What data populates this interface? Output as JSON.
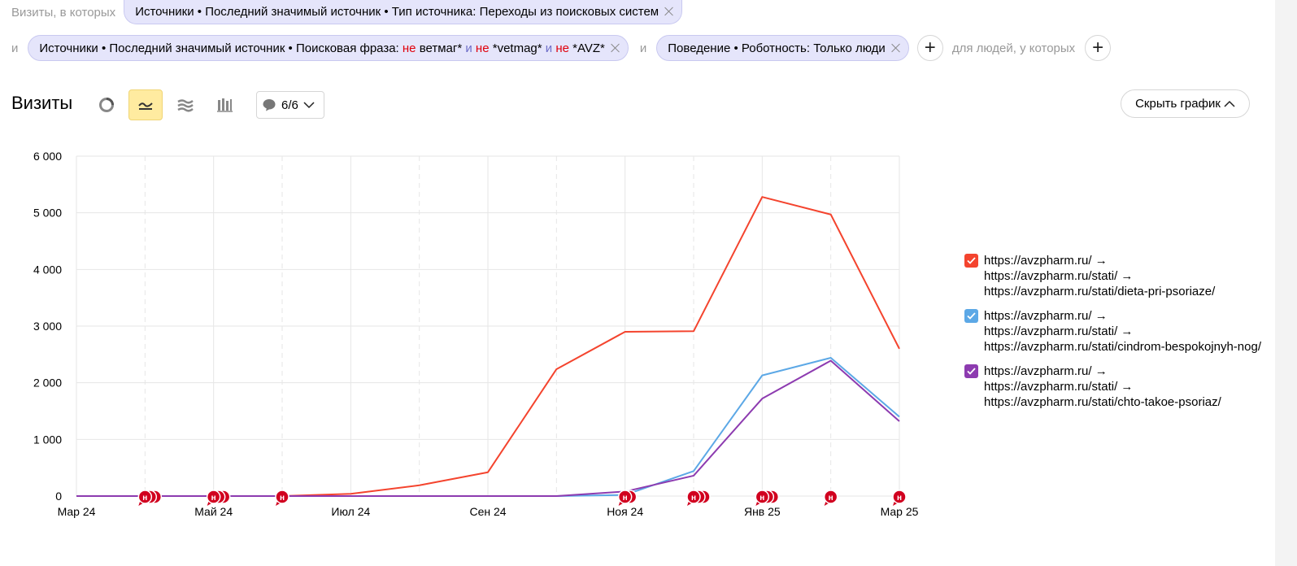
{
  "filters": {
    "row1_prefix": "Визиты, в которых",
    "chip1": "Источники • Последний значимый источник • Тип источника: Переходы из поисковых систем",
    "and": "и",
    "chip2": {
      "prefix": "Источники • Последний значимый источник • Поисковая фраза: ",
      "not1": "не",
      "t1": " ветмаг* ",
      "and1": "и",
      "sp1": " ",
      "not2": "не",
      "t2": " *vetmag* ",
      "and2": "и",
      "sp2": " ",
      "not3": "не",
      "t3": " *AVZ*"
    },
    "chip3": "Поведение • Роботность: Только люди",
    "people_label": "для людей, у которых",
    "plus": "+"
  },
  "toolbar": {
    "title": "Визиты",
    "notes_count": "6/6",
    "hide_chart": "Скрыть график"
  },
  "colors": {
    "red": "#f4442e",
    "blue": "#5ca8e6",
    "purple": "#8d3bb0",
    "marker": "#d1001f"
  },
  "chart_data": {
    "type": "line",
    "ylim": [
      0,
      6000
    ],
    "yticks": [
      "0",
      "1 000",
      "2 000",
      "3 000",
      "4 000",
      "5 000",
      "6 000"
    ],
    "x_ticks": [
      "Мар 24",
      "Май 24",
      "Июл 24",
      "Сен 24",
      "Ноя 24",
      "Янв 25",
      "Мар 25"
    ],
    "x": [
      "2024-03",
      "2024-04",
      "2024-05",
      "2024-06",
      "2024-07",
      "2024-08",
      "2024-09",
      "2024-10",
      "2024-11",
      "2024-12",
      "2025-01",
      "2025-02",
      "2025-03"
    ],
    "series": [
      {
        "name": "https://avzpharm.ru/ →\nhttps://avzpharm.ru/stati/ →\nhttps://avzpharm.ru/stati/dieta-pri-psoriaze/",
        "color": "#f4442e",
        "values": [
          0,
          0,
          0,
          0,
          40,
          190,
          420,
          2240,
          2900,
          2910,
          5280,
          4970,
          2600
        ]
      },
      {
        "name": "https://avzpharm.ru/ →\nhttps://avzpharm.ru/stati/ →\nhttps://avzpharm.ru/stati/cindrom-bespokojnyh-nog/",
        "color": "#5ca8e6",
        "values": [
          0,
          0,
          0,
          0,
          0,
          0,
          0,
          0,
          20,
          440,
          2130,
          2440,
          1400
        ]
      },
      {
        "name": "https://avzpharm.ru/ →\nhttps://avzpharm.ru/stati/ →\nhttps://avzpharm.ru/stati/chto-takoe-psoriaz/",
        "color": "#8d3bb0",
        "values": [
          0,
          0,
          0,
          0,
          0,
          0,
          0,
          0,
          80,
          360,
          1720,
          2390,
          1320
        ]
      }
    ],
    "annotations": [
      {
        "x": "2024-04",
        "label": "н",
        "count": 3
      },
      {
        "x": "2024-05",
        "label": "н",
        "count": 3
      },
      {
        "x": "2024-06",
        "label": "н",
        "count": 1
      },
      {
        "x": "2024-11",
        "label": "н",
        "count": 2
      },
      {
        "x": "2024-12",
        "label": "н",
        "count": 3
      },
      {
        "x": "2025-01",
        "label": "н",
        "count": 3
      },
      {
        "x": "2025-02",
        "label": "н",
        "count": 1
      },
      {
        "x": "2025-03",
        "label": "н",
        "count": 1
      }
    ]
  }
}
